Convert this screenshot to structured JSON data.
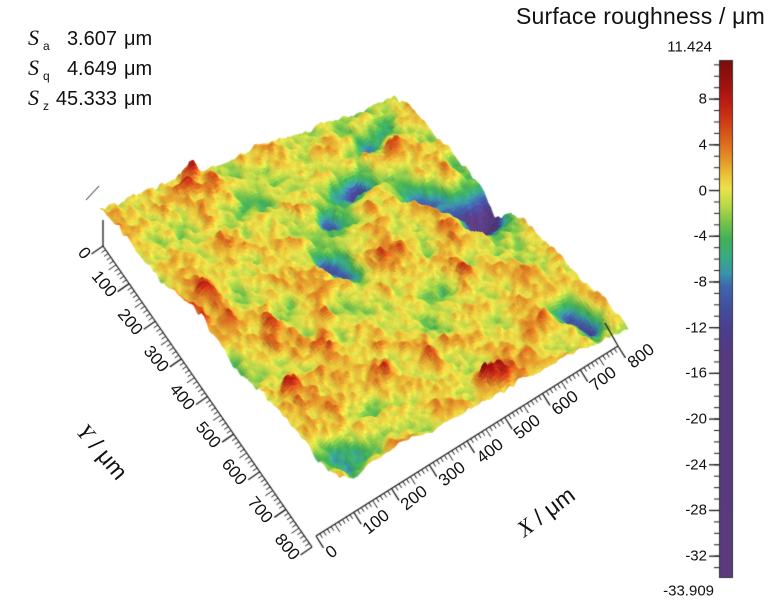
{
  "figure": {
    "background": "#ffffff"
  },
  "stats": {
    "rows": [
      {
        "symbol": "S",
        "subscript": "a",
        "value": "3.607",
        "unit": "μm"
      },
      {
        "symbol": "S",
        "subscript": "q",
        "value": "4.649",
        "unit": "μm"
      },
      {
        "symbol": "S",
        "subscript": "z",
        "value": "45.333",
        "unit": "μm"
      }
    ]
  },
  "chart_data": {
    "type": "surface_3d",
    "title": "Surface roughness / μm",
    "xlabel": "X / μm",
    "ylabel": "Y / μm",
    "x_range": [
      0,
      800
    ],
    "y_range": [
      0,
      800
    ],
    "x_ticks": [
      0,
      100,
      200,
      300,
      400,
      500,
      600,
      700,
      800
    ],
    "y_ticks": [
      0,
      100,
      200,
      300,
      400,
      500,
      600,
      700,
      800
    ],
    "minor_tick_step_um": 10,
    "z_max": 11.424,
    "z_min": -33.909,
    "grid": false,
    "legend": "colorbar-right",
    "surface_statistics": {
      "Sa": 3.607,
      "Sq": 4.649,
      "Sz": 45.333,
      "unit": "μm"
    },
    "colorbar": {
      "max_label": "11.424",
      "min_label": "-33.909",
      "major_ticks": [
        8,
        4,
        0,
        -4,
        -8,
        -12,
        -16,
        -20,
        -24,
        -28,
        -32
      ],
      "minor_tick_step": 1,
      "palette": [
        [
          11.424,
          "#7b0e0b"
        ],
        [
          9.2,
          "#a21210"
        ],
        [
          7.5,
          "#c02112"
        ],
        [
          5.8,
          "#d24417"
        ],
        [
          4.2,
          "#dc6c1d"
        ],
        [
          2.6,
          "#e59a2a"
        ],
        [
          1.2,
          "#ecc93a"
        ],
        [
          0.2,
          "#ece24a"
        ],
        [
          -1.2,
          "#bcda47"
        ],
        [
          -2.8,
          "#74c44b"
        ],
        [
          -4.2,
          "#41b158"
        ],
        [
          -5.8,
          "#38ac85"
        ],
        [
          -7.2,
          "#3b93ac"
        ],
        [
          -8.4,
          "#3f66ae"
        ],
        [
          -10,
          "#42529f"
        ],
        [
          -12,
          "#4a3f8e"
        ],
        [
          -14.5,
          "#553a81"
        ],
        [
          -33.909,
          "#5b3a7d"
        ]
      ]
    }
  }
}
